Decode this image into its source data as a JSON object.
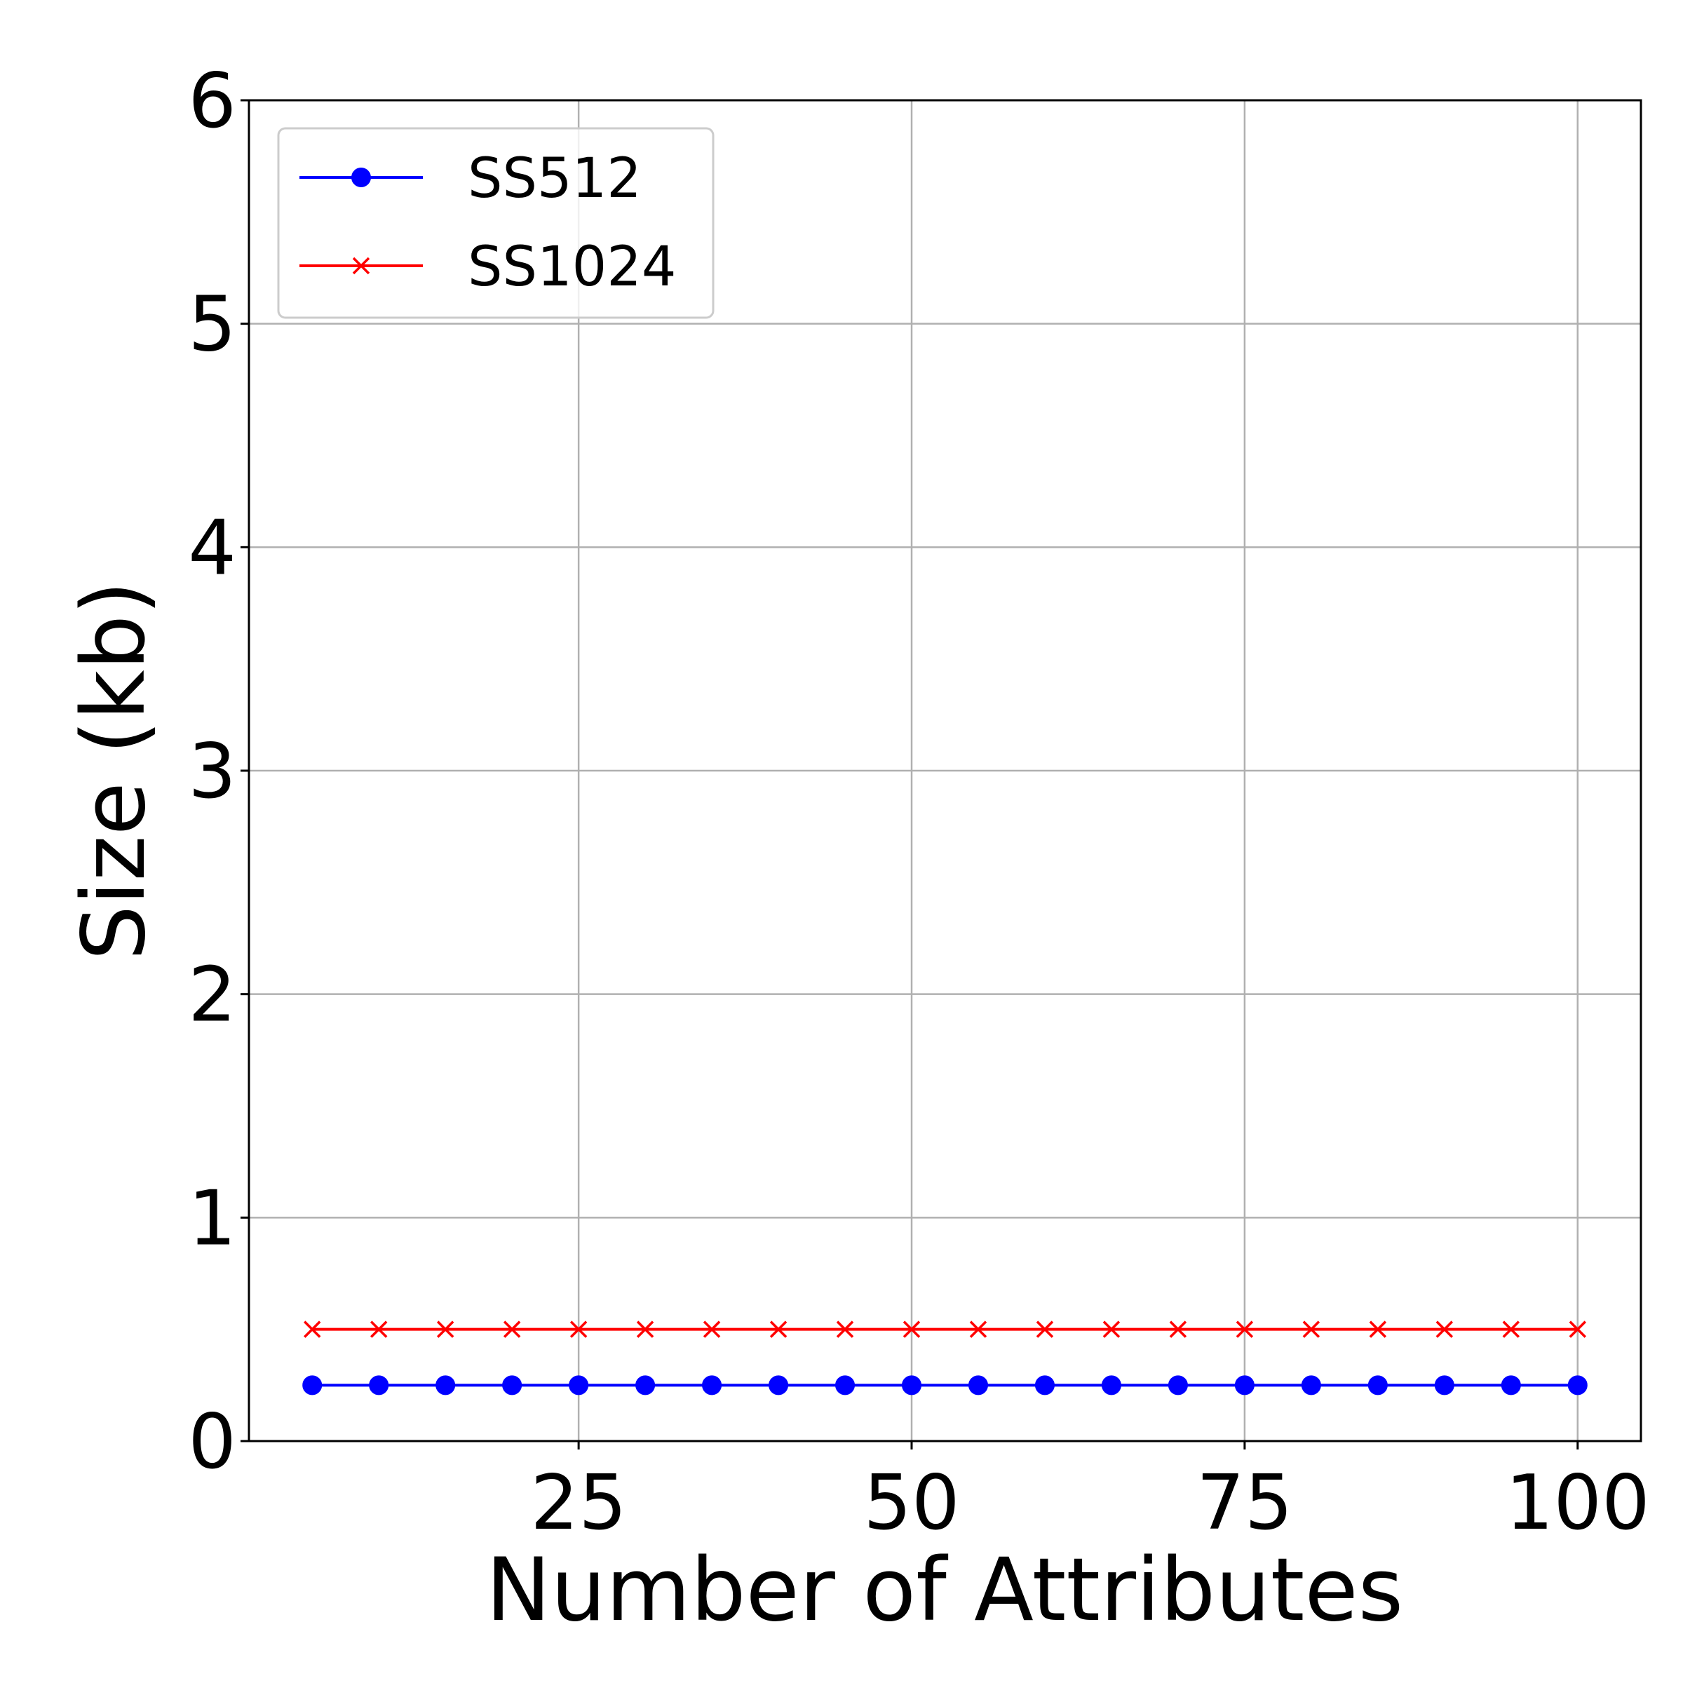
{
  "chart_data": {
    "type": "line",
    "title": "",
    "xlabel": "Number of Attributes",
    "ylabel": "Size (kb)",
    "x": [
      5,
      10,
      15,
      20,
      25,
      30,
      35,
      40,
      45,
      50,
      55,
      60,
      65,
      70,
      75,
      80,
      85,
      90,
      95,
      100
    ],
    "xlim": [
      0.25,
      104.75
    ],
    "ylim": [
      0,
      6
    ],
    "xticks": [
      25,
      50,
      75,
      100
    ],
    "yticks": [
      0,
      1,
      2,
      3,
      4,
      5,
      6
    ],
    "xtick_labels": [
      "25",
      "50",
      "75",
      "100"
    ],
    "ytick_labels": [
      "0",
      "1",
      "2",
      "3",
      "4",
      "5",
      "6"
    ],
    "grid": true,
    "legend_position": "top-left",
    "series": [
      {
        "name": "SS512",
        "color": "#0000ff",
        "marker": "circle",
        "values": [
          0.25,
          0.25,
          0.25,
          0.25,
          0.25,
          0.25,
          0.25,
          0.25,
          0.25,
          0.25,
          0.25,
          0.25,
          0.25,
          0.25,
          0.25,
          0.25,
          0.25,
          0.25,
          0.25,
          0.25
        ]
      },
      {
        "name": "SS1024",
        "color": "#ff0000",
        "marker": "x",
        "values": [
          0.5,
          0.5,
          0.5,
          0.5,
          0.5,
          0.5,
          0.5,
          0.5,
          0.5,
          0.5,
          0.5,
          0.5,
          0.5,
          0.5,
          0.5,
          0.5,
          0.5,
          0.5,
          0.5,
          0.5
        ]
      }
    ]
  }
}
